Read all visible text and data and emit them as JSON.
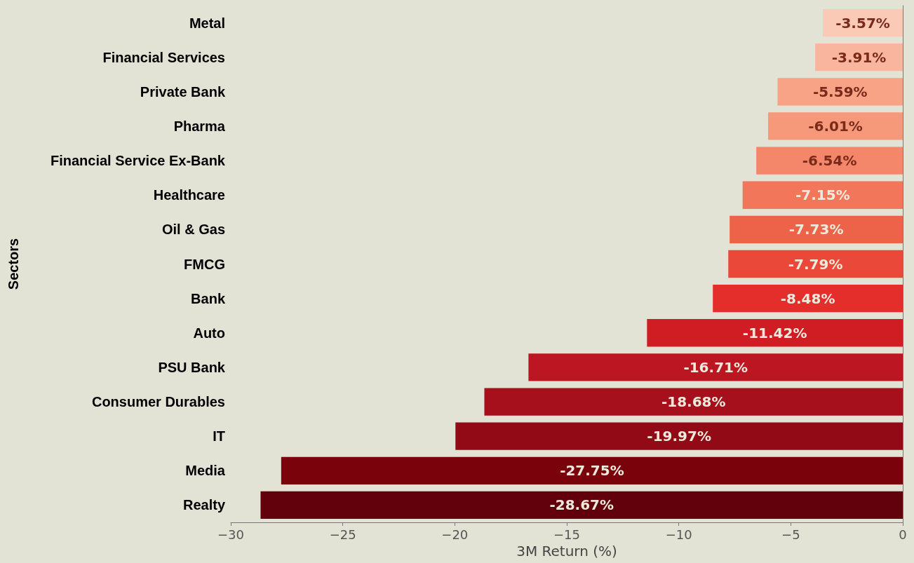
{
  "chart_data": {
    "type": "bar",
    "orientation": "horizontal",
    "xlabel": "3M Return (%)",
    "ylabel": "Sectors",
    "categories": [
      "Metal",
      "Financial Services",
      "Private Bank",
      "Pharma",
      "Financial Service Ex-Bank",
      "Healthcare",
      "Oil & Gas",
      "FMCG",
      "Bank",
      "Auto",
      "PSU Bank",
      "Consumer Durables",
      "IT",
      "Media",
      "Realty"
    ],
    "values": [
      -3.57,
      -3.91,
      -5.59,
      -6.01,
      -6.54,
      -7.15,
      -7.73,
      -7.79,
      -8.48,
      -11.42,
      -16.71,
      -18.68,
      -19.97,
      -27.75,
      -28.67
    ],
    "value_labels": [
      "-3.57%",
      "-3.91%",
      "-5.59%",
      "-6.01%",
      "-6.54%",
      "-7.15%",
      "-7.73%",
      "-7.79%",
      "-8.48%",
      "-11.42%",
      "-16.71%",
      "-18.68%",
      "-19.97%",
      "-27.75%",
      "-28.67%"
    ],
    "colors": [
      "#fbcab7",
      "#fab59e",
      "#f8a386",
      "#f6987a",
      "#f4866a",
      "#f2765a",
      "#ed6349",
      "#ea4838",
      "#e32e2c",
      "#d01d24",
      "#bb1622",
      "#a60f1c",
      "#920a16",
      "#79020b",
      "#62000c"
    ],
    "xlim": [
      -30,
      0
    ],
    "xticks": [
      -30,
      -25,
      -20,
      -15,
      -10,
      -5,
      0
    ],
    "grid": false
  }
}
